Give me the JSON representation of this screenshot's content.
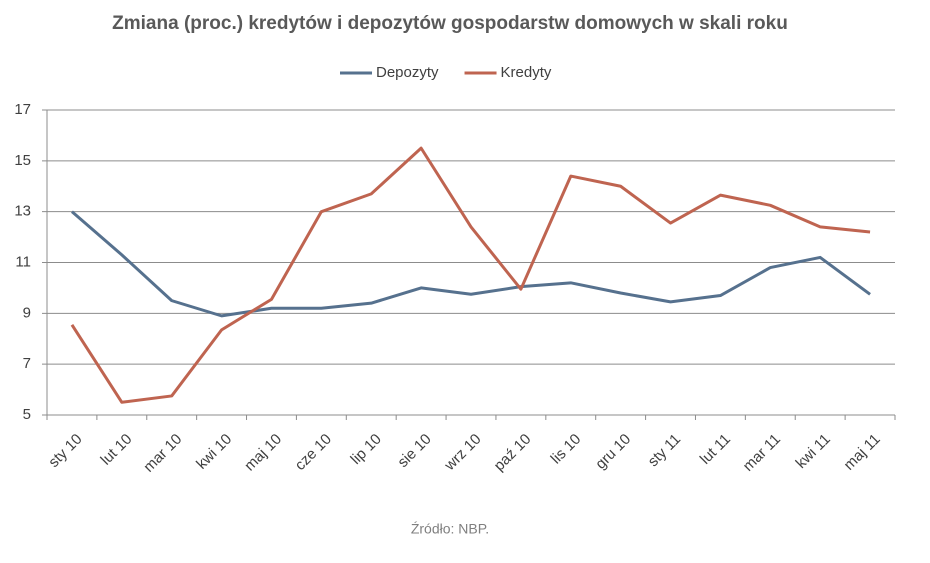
{
  "chart_data": {
    "type": "line",
    "title": "Zmiana (proc.) kredytów i depozytów gospodarstw domowych w skali roku",
    "source": "Źródło: NBP.",
    "categories": [
      "sty 10",
      "lut 10",
      "mar 10",
      "kwi 10",
      "maj 10",
      "cze 10",
      "lip 10",
      "sie 10",
      "wrz 10",
      "paź 10",
      "lis 10",
      "gru 10",
      "sty 11",
      "lut 11",
      "mar 11",
      "kwi 11",
      "maj 11"
    ],
    "series": [
      {
        "name": "Depozyty",
        "color": "#56718e",
        "values": [
          13.0,
          11.3,
          9.5,
          8.9,
          9.2,
          9.2,
          9.4,
          10.0,
          9.75,
          10.05,
          10.2,
          9.8,
          9.45,
          9.7,
          10.8,
          11.2,
          9.75
        ]
      },
      {
        "name": "Kredyty",
        "color": "#bf6450",
        "values": [
          8.55,
          5.5,
          5.75,
          8.35,
          9.55,
          13.0,
          13.7,
          15.5,
          12.4,
          9.95,
          14.4,
          14.0,
          12.55,
          13.65,
          13.25,
          12.4,
          12.2
        ]
      }
    ],
    "ylim": [
      5,
      17
    ],
    "yticks": [
      5,
      7,
      9,
      11,
      13,
      15,
      17
    ],
    "grid": true,
    "legend": "top"
  }
}
